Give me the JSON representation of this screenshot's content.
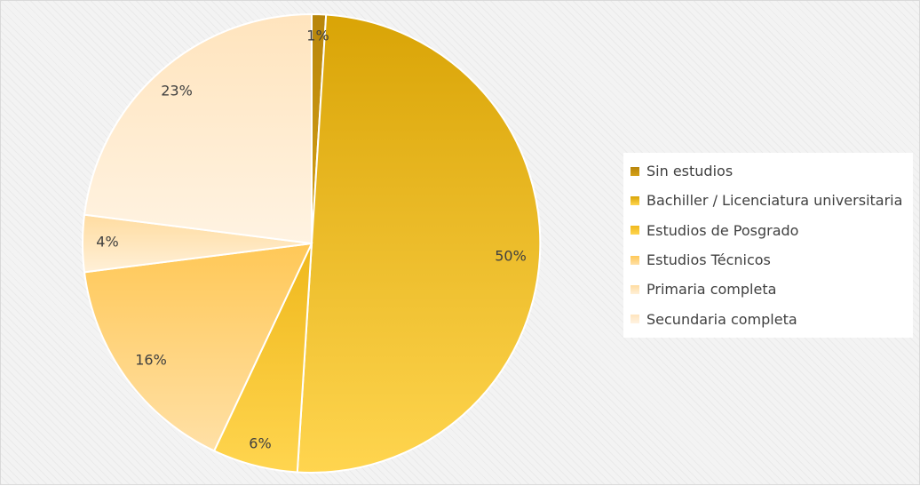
{
  "chart_data": {
    "type": "pie",
    "title": "",
    "categories": [
      "Sin estudios",
      "Bachiller / Licenciatura universitaria",
      "Estudios de Posgrado",
      "Estudios Técnicos",
      "Primaria completa",
      "Secundaria completa"
    ],
    "values": [
      1,
      50,
      6,
      16,
      4,
      23
    ],
    "labels": [
      "1%",
      "50%",
      "6%",
      "16%",
      "4%",
      "23%"
    ],
    "colors": [
      [
        "#b8860b",
        "#d4a017"
      ],
      [
        "#d9a406",
        "#ffd54f"
      ],
      [
        "#efb81c",
        "#ffd54f"
      ],
      [
        "#ffc857",
        "#ffe0a6"
      ],
      [
        "#ffdca0",
        "#fff0d8"
      ],
      [
        "#ffe4bd",
        "#fff3e2"
      ]
    ],
    "legend_position": "right"
  }
}
